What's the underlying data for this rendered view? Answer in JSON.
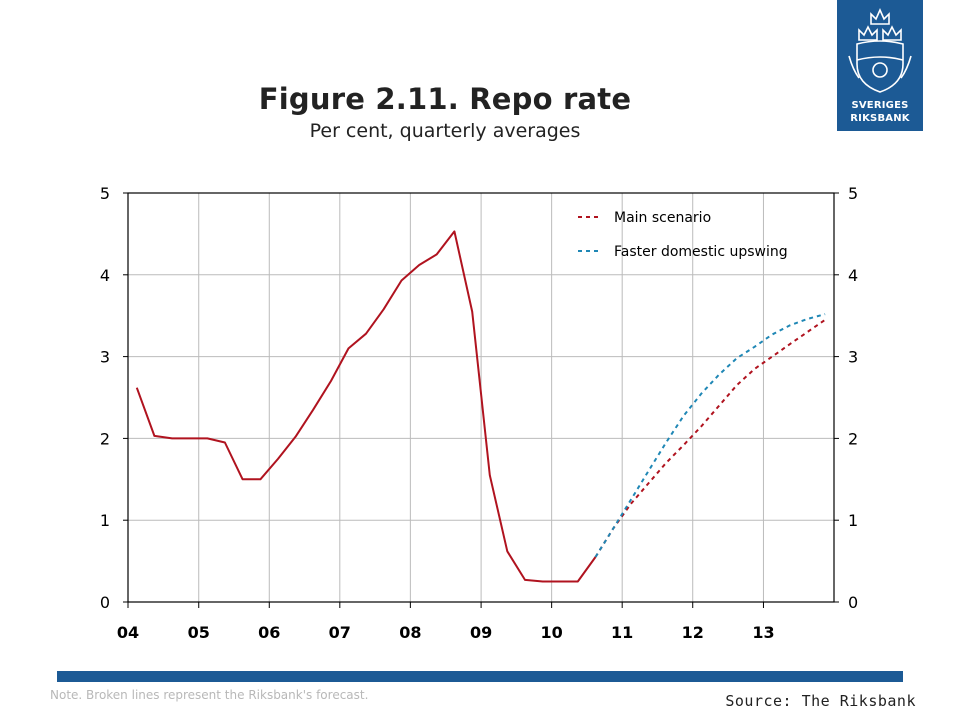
{
  "header": {
    "title": "Figure 2.11. Repo rate",
    "subtitle": "Per cent, quarterly averages"
  },
  "logo": {
    "line1": "SVERIGES",
    "line2": "RIKSBANK",
    "icon": "crowned-shield-icon"
  },
  "footer": {
    "note": "Note. Broken lines represent the Riksbank's forecast.",
    "source": "Source: The Riksbank"
  },
  "colors": {
    "main": "#b0131f",
    "faster": "#1f87b5",
    "brand": "#1c5a95",
    "grid": "#bbbbbb"
  },
  "chart_data": {
    "type": "line",
    "title": "Figure 2.11. Repo rate",
    "subtitle": "Per cent, quarterly averages",
    "xlabel": "",
    "ylabel": "",
    "x_ticks": [
      "04",
      "05",
      "06",
      "07",
      "08",
      "09",
      "10",
      "11",
      "12",
      "13"
    ],
    "xlim": [
      "2004-01-01",
      "2014-01-01"
    ],
    "ylim": [
      0,
      5
    ],
    "y_ticks": [
      0,
      1,
      2,
      3,
      4,
      5
    ],
    "grid": true,
    "legend_position": "top-right",
    "series": [
      {
        "name": "",
        "style": "solid",
        "color": "#b0131f",
        "x": [
          "2004-Q1",
          "2004-Q2",
          "2004-Q3",
          "2004-Q4",
          "2005-Q1",
          "2005-Q2",
          "2005-Q3",
          "2005-Q4",
          "2006-Q1",
          "2006-Q2",
          "2006-Q3",
          "2006-Q4",
          "2007-Q1",
          "2007-Q2",
          "2007-Q3",
          "2007-Q4",
          "2008-Q1",
          "2008-Q2",
          "2008-Q3",
          "2008-Q4",
          "2009-Q1",
          "2009-Q2",
          "2009-Q3",
          "2009-Q4",
          "2010-Q1",
          "2010-Q2",
          "2010-Q3"
        ],
        "y": [
          2.62,
          2.03,
          2.0,
          2.0,
          2.0,
          1.95,
          1.5,
          1.5,
          1.75,
          2.02,
          2.35,
          2.7,
          3.1,
          3.28,
          3.58,
          3.93,
          4.12,
          4.25,
          4.53,
          3.55,
          1.55,
          0.62,
          0.27,
          0.25,
          0.25,
          0.25,
          0.55
        ]
      },
      {
        "name": "Main scenario",
        "style": "dashed",
        "color": "#b0131f",
        "x": [
          "2010-Q3",
          "2010-Q4",
          "2011-Q1",
          "2011-Q2",
          "2011-Q3",
          "2011-Q4",
          "2012-Q1",
          "2012-Q2",
          "2012-Q3",
          "2012-Q4",
          "2013-Q1",
          "2013-Q2",
          "2013-Q3",
          "2013-Q4"
        ],
        "y": [
          0.55,
          0.9,
          1.2,
          1.45,
          1.7,
          1.92,
          2.15,
          2.4,
          2.65,
          2.85,
          3.0,
          3.15,
          3.3,
          3.45
        ]
      },
      {
        "name": "Faster domestic upswing",
        "style": "dashed",
        "color": "#1f87b5",
        "x": [
          "2010-Q3",
          "2010-Q4",
          "2011-Q1",
          "2011-Q2",
          "2011-Q3",
          "2011-Q4",
          "2012-Q1",
          "2012-Q2",
          "2012-Q3",
          "2012-Q4",
          "2013-Q1",
          "2013-Q2",
          "2013-Q3",
          "2013-Q4"
        ],
        "y": [
          0.55,
          0.9,
          1.25,
          1.6,
          1.95,
          2.28,
          2.55,
          2.78,
          2.98,
          3.12,
          3.27,
          3.38,
          3.46,
          3.52
        ]
      }
    ]
  }
}
